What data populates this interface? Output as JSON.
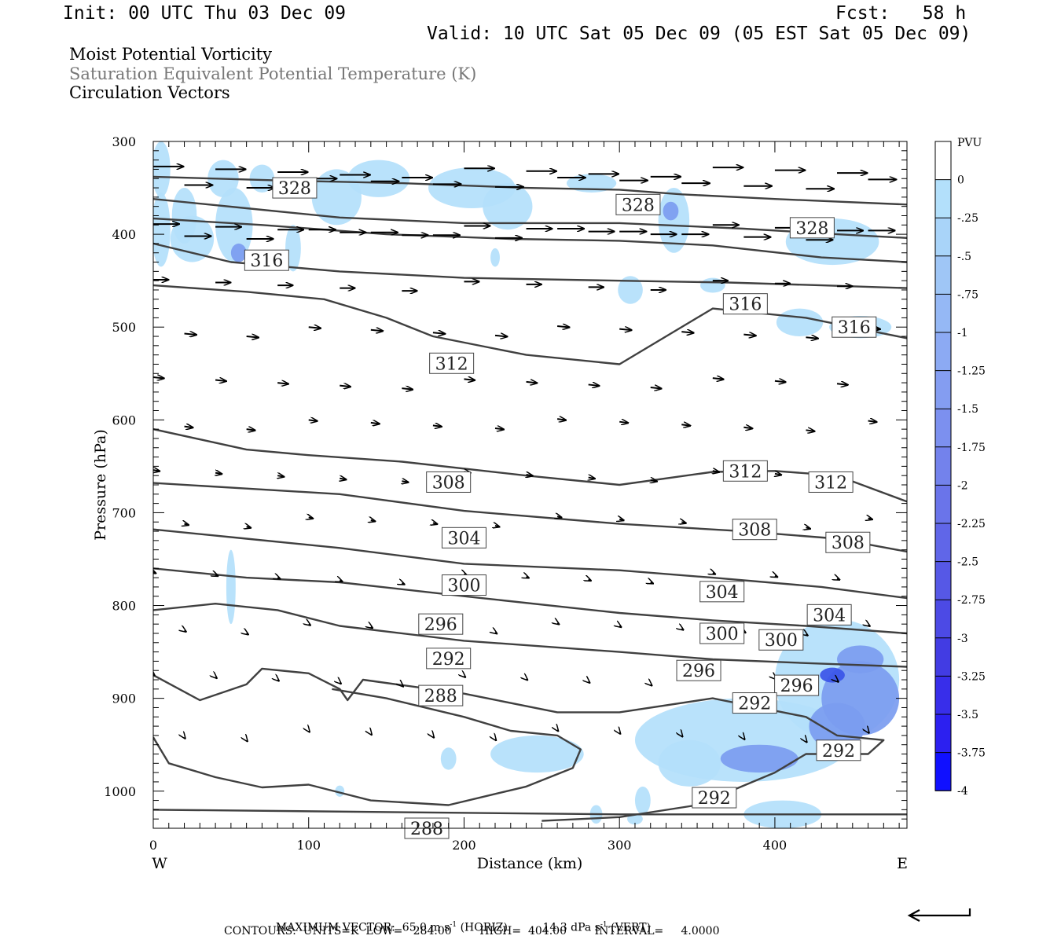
{
  "header": {
    "init": "Init: 00 UTC Thu 03 Dec 09",
    "fcst": "Fcst:   58 h",
    "valid": "Valid: 10 UTC Sat 05 Dec 09 (05 EST Sat 05 Dec 09)",
    "line1": "Moist Potential Vorticity",
    "line2": "Saturation Equivalent Potential Temperature (K)",
    "line3": "Circulation Vectors"
  },
  "footer": {
    "max_vector_label": "MAXIMUM VECTOR:",
    "max_horiz_value": "65.0 m s",
    "max_horiz_unit": "(HORIZ)",
    "max_vert_value": "14.3 dPa s",
    "max_vert_unit": "(VERT)",
    "exponent": "-1",
    "contours": "CONTOURS:  UNITS=K  LOW=   284.00        HIGH=  404.00        INTERVAL=     4.0000"
  },
  "colors": {
    "contour": "#404040",
    "shade_light": "#b3e0fb",
    "shade_mid": "#7b9cf0",
    "shade_dark": "#3a54e8"
  },
  "chart_data": {
    "type": "heatmap",
    "xlabel": "Distance (km)",
    "ylabel": "Pressure (hPa)",
    "x_ticks": [
      "0",
      "100",
      "200",
      "300",
      "400"
    ],
    "y_ticks": [
      "300",
      "400",
      "500",
      "600",
      "700",
      "800",
      "900",
      "1000"
    ],
    "xlim": [
      0,
      485
    ],
    "ylim": [
      300,
      1040
    ],
    "y_inverted": true,
    "side_labels": {
      "west": "W",
      "east": "E"
    },
    "colorbar": {
      "title": "PVU",
      "labels": [
        "0",
        "-.25",
        "-.5",
        "-.75",
        "-1",
        "-1.25",
        "-1.5",
        "-1.75",
        "-2",
        "-2.25",
        "-2.5",
        "-2.75",
        "-3",
        "-3.25",
        "-3.5",
        "-3.75",
        "-4"
      ],
      "colors": [
        "#ffffff",
        "#b3e0fb",
        "#a9d4f9",
        "#9fc6f6",
        "#95b8f5",
        "#8caaf3",
        "#849df1",
        "#7c90ef",
        "#7382ec",
        "#6a74ea",
        "#6066e8",
        "#5658e6",
        "#4c4ae5",
        "#423ce3",
        "#382eea",
        "#2c20f0",
        "#1010ff"
      ]
    },
    "contour_labels": [
      {
        "text": "328",
        "x": 91,
        "p": 350
      },
      {
        "text": "328",
        "x": 312,
        "p": 368
      },
      {
        "text": "328",
        "x": 424,
        "p": 393
      },
      {
        "text": "316",
        "x": 73,
        "p": 428
      },
      {
        "text": "316",
        "x": 381,
        "p": 475
      },
      {
        "text": "316",
        "x": 451,
        "p": 500
      },
      {
        "text": "312",
        "x": 192,
        "p": 539
      },
      {
        "text": "312",
        "x": 381,
        "p": 655
      },
      {
        "text": "312",
        "x": 436,
        "p": 667
      },
      {
        "text": "308",
        "x": 190,
        "p": 667
      },
      {
        "text": "308",
        "x": 387,
        "p": 718
      },
      {
        "text": "308",
        "x": 447,
        "p": 732
      },
      {
        "text": "304",
        "x": 200,
        "p": 727
      },
      {
        "text": "304",
        "x": 366,
        "p": 785
      },
      {
        "text": "304",
        "x": 435,
        "p": 810
      },
      {
        "text": "300",
        "x": 200,
        "p": 778
      },
      {
        "text": "300",
        "x": 366,
        "p": 830
      },
      {
        "text": "300",
        "x": 404,
        "p": 837
      },
      {
        "text": "296",
        "x": 185,
        "p": 820
      },
      {
        "text": "296",
        "x": 351,
        "p": 870
      },
      {
        "text": "296",
        "x": 414,
        "p": 886
      },
      {
        "text": "292",
        "x": 190,
        "p": 857
      },
      {
        "text": "292",
        "x": 387,
        "p": 905
      },
      {
        "text": "292",
        "x": 441,
        "p": 956
      },
      {
        "text": "292",
        "x": 361,
        "p": 1007
      },
      {
        "text": "288",
        "x": 185,
        "p": 897
      },
      {
        "text": "288",
        "x": 176,
        "p": 1040
      }
    ]
  }
}
